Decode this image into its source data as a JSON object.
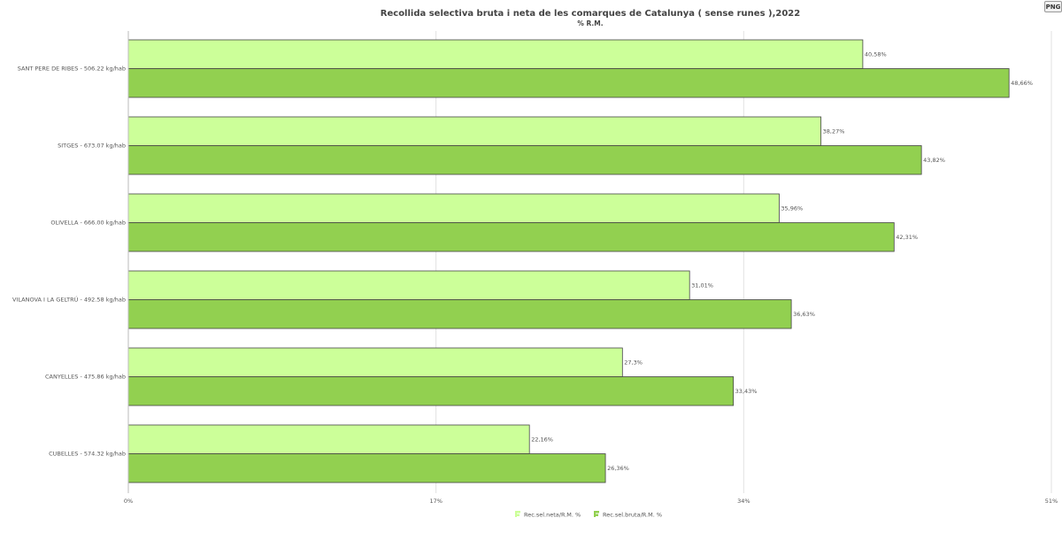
{
  "toolbar": {
    "png_label": "PNG"
  },
  "chart_data": {
    "type": "bar",
    "orientation": "horizontal",
    "title": "Recollida selectiva bruta i neta de les comarques de Catalunya ( sense runes ),2022",
    "subtitle": "% R.M.",
    "categories": [
      "SANT PERE DE RIBES - 506.22 kg/hab",
      "SITGES - 673.07 kg/hab",
      "OLIVELLA - 666.00 kg/hab",
      "VILANOVA I LA GELTRÚ - 492.58 kg/hab",
      "CANYELLES - 475.86 kg/hab",
      "CUBELLES - 574.32 kg/hab"
    ],
    "series": [
      {
        "name": "Rec.sel.neta/R.M. %",
        "color": "#ccff99",
        "values": [
          40.58,
          38.27,
          35.96,
          31.01,
          27.3,
          22.16
        ],
        "labels": [
          "40,58%",
          "38,27%",
          "35,96%",
          "31,01%",
          "27,3%",
          "22,16%"
        ]
      },
      {
        "name": "Rec.sel.bruta/R.M. %",
        "color": "#92d050",
        "values": [
          48.66,
          43.82,
          42.31,
          36.63,
          33.43,
          26.36
        ],
        "labels": [
          "48,66%",
          "43,82%",
          "42,31%",
          "36,63%",
          "33,43%",
          "26,36%"
        ]
      }
    ],
    "xlim": [
      0,
      51
    ],
    "ticks": [
      0,
      17,
      34,
      51
    ],
    "tick_labels": [
      "0%",
      "17%",
      "34%",
      "51%"
    ],
    "grid": true,
    "legend_position": "bottom-center"
  }
}
